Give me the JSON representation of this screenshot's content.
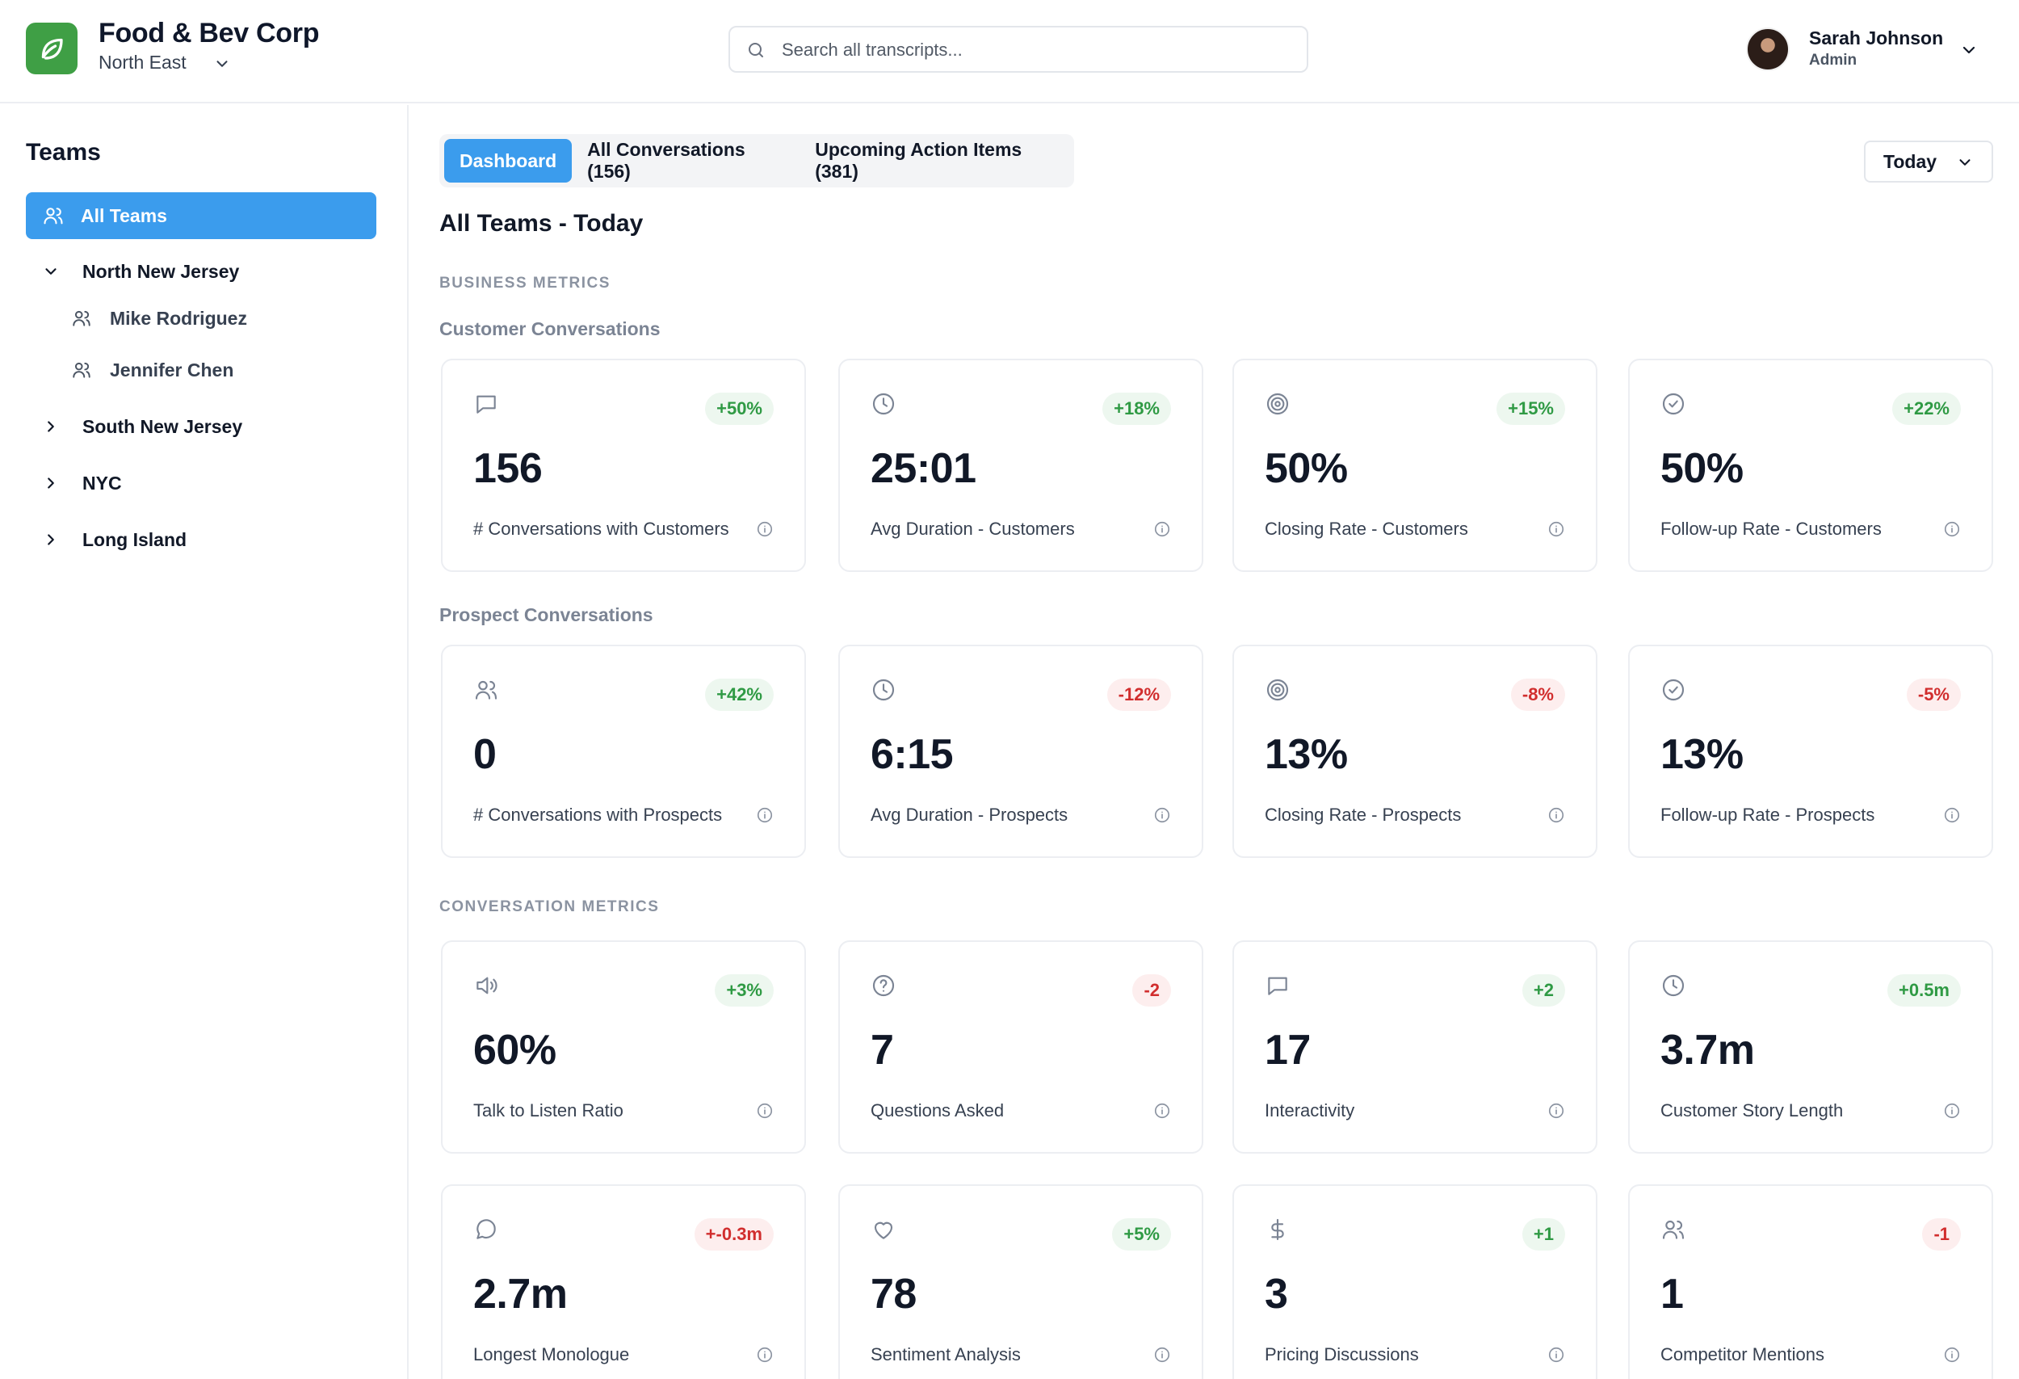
{
  "header": {
    "company": "Food & Bev Corp",
    "region": "North East",
    "search_placeholder": "Search all transcripts...",
    "user_name": "Sarah Johnson",
    "user_role": "Admin",
    "brand_color": "#3f9f45"
  },
  "sidebar": {
    "title": "Teams",
    "all_teams": "All Teams",
    "groups": [
      {
        "label": "North New Jersey",
        "expanded": true,
        "members": [
          "Mike Rodriguez",
          "Jennifer Chen"
        ]
      },
      {
        "label": "South New Jersey",
        "expanded": false
      },
      {
        "label": "NYC",
        "expanded": false
      },
      {
        "label": "Long Island",
        "expanded": false
      }
    ]
  },
  "tabs": [
    {
      "label": "Dashboard",
      "active": true
    },
    {
      "label": "All Conversations (156)",
      "active": false
    },
    {
      "label": "Upcoming Action Items (381)",
      "active": false
    }
  ],
  "range": "Today",
  "page_title": "All Teams - Today",
  "sections": {
    "business": "BUSINESS METRICS",
    "customer_group": "Customer Conversations",
    "prospect_group": "Prospect Conversations",
    "conversation": "CONVERSATION METRICS"
  },
  "cards": {
    "customers": [
      {
        "icon": "message-icon",
        "badge": "+50%",
        "trend": "pos",
        "value": "156",
        "label": "# Conversations with Customers"
      },
      {
        "icon": "clock-icon",
        "badge": "+18%",
        "trend": "pos",
        "value": "25:01",
        "label": "Avg Duration - Customers"
      },
      {
        "icon": "target-icon",
        "badge": "+15%",
        "trend": "pos",
        "value": "50%",
        "label": "Closing Rate - Customers"
      },
      {
        "icon": "check-circle-icon",
        "badge": "+22%",
        "trend": "pos",
        "value": "50%",
        "label": "Follow-up Rate - Customers"
      }
    ],
    "prospects": [
      {
        "icon": "users-icon",
        "badge": "+42%",
        "trend": "pos",
        "value": "0",
        "label": "# Conversations with Prospects"
      },
      {
        "icon": "clock-icon",
        "badge": "-12%",
        "trend": "neg",
        "value": "6:15",
        "label": "Avg Duration - Prospects"
      },
      {
        "icon": "target-icon",
        "badge": "-8%",
        "trend": "neg",
        "value": "13%",
        "label": "Closing Rate - Prospects"
      },
      {
        "icon": "check-circle-icon",
        "badge": "-5%",
        "trend": "neg",
        "value": "13%",
        "label": "Follow-up Rate - Prospects"
      }
    ],
    "conversation_a": [
      {
        "icon": "speaker-icon",
        "badge": "+3%",
        "trend": "pos",
        "value": "60%",
        "label": "Talk to Listen Ratio"
      },
      {
        "icon": "help-circle-icon",
        "badge": "-2",
        "trend": "neg",
        "value": "7",
        "label": "Questions Asked"
      },
      {
        "icon": "message-icon",
        "badge": "+2",
        "trend": "pos",
        "value": "17",
        "label": "Interactivity"
      },
      {
        "icon": "clock-icon",
        "badge": "+0.5m",
        "trend": "pos",
        "value": "3.7m",
        "label": "Customer Story Length"
      }
    ],
    "conversation_b": [
      {
        "icon": "chat-bubble-icon",
        "badge": "+-0.3m",
        "trend": "neg",
        "value": "2.7m",
        "label": "Longest Monologue"
      },
      {
        "icon": "heart-icon",
        "badge": "+5%",
        "trend": "pos",
        "value": "78",
        "label": "Sentiment Analysis"
      },
      {
        "icon": "dollar-icon",
        "badge": "+1",
        "trend": "pos",
        "value": "3",
        "label": "Pricing Discussions"
      },
      {
        "icon": "users-icon",
        "badge": "-1",
        "trend": "neg",
        "value": "1",
        "label": "Competitor Mentions"
      }
    ]
  }
}
